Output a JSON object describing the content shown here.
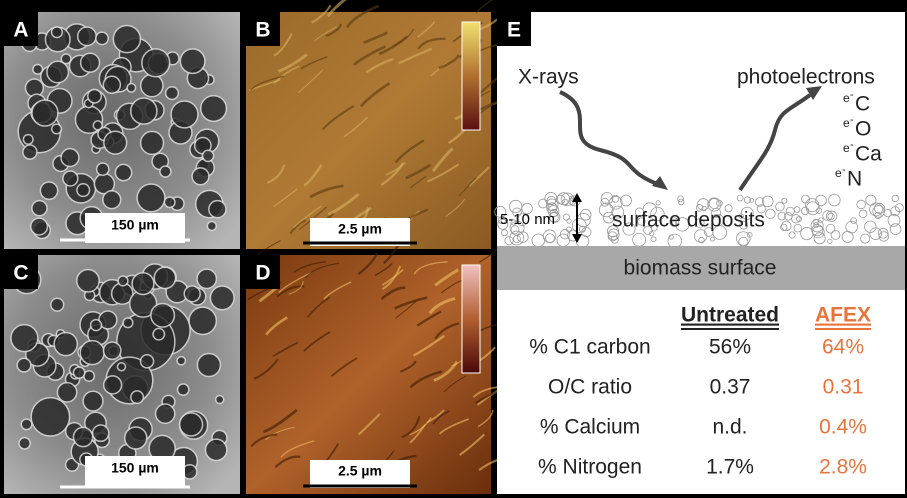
{
  "panels": [
    {
      "label": "A",
      "scale": "150 µm"
    },
    {
      "label": "B",
      "scale": "2.5 µm"
    },
    {
      "label": "C",
      "scale": "150 µm"
    },
    {
      "label": "D",
      "scale": "2.5 µm"
    }
  ],
  "schematic": {
    "label": "E",
    "incoming": "X-rays",
    "outgoing": "photoelectrons",
    "electron_symbol": "e",
    "electron_charge": "-",
    "elements": [
      "C",
      "O",
      "Ca",
      "N"
    ],
    "thickness": "5-10 nm",
    "deposits": "surface deposits",
    "surface": "biomass surface"
  },
  "table": {
    "headers": [
      "Untreated",
      "AFEX"
    ],
    "rows": [
      [
        "% C1 carbon",
        "56%",
        "64%"
      ],
      [
        "O/C ratio",
        "0.37",
        "0.31"
      ],
      [
        "% Calcium",
        "n.d.",
        "0.4%"
      ],
      [
        "% Nitrogen",
        "1.7%",
        "2.8%"
      ]
    ]
  }
}
